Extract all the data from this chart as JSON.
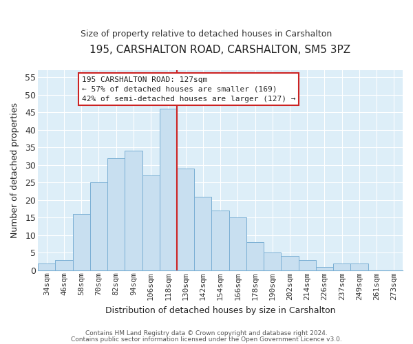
{
  "title": "195, CARSHALTON ROAD, CARSHALTON, SM5 3PZ",
  "subtitle": "Size of property relative to detached houses in Carshalton",
  "xlabel": "Distribution of detached houses by size in Carshalton",
  "ylabel": "Number of detached properties",
  "bin_labels": [
    "34sqm",
    "46sqm",
    "58sqm",
    "70sqm",
    "82sqm",
    "94sqm",
    "106sqm",
    "118sqm",
    "130sqm",
    "142sqm",
    "154sqm",
    "166sqm",
    "178sqm",
    "190sqm",
    "202sqm",
    "214sqm",
    "226sqm",
    "237sqm",
    "249sqm",
    "261sqm",
    "273sqm"
  ],
  "bar_heights": [
    2,
    3,
    16,
    25,
    32,
    34,
    27,
    46,
    29,
    21,
    17,
    15,
    8,
    5,
    4,
    3,
    1,
    2,
    2,
    0,
    0
  ],
  "bar_color": "#c8dff0",
  "bar_edgecolor": "#7aafd4",
  "vline_color": "#cc2222",
  "vline_x": 7.5,
  "ylim": [
    0,
    57
  ],
  "yticks": [
    0,
    5,
    10,
    15,
    20,
    25,
    30,
    35,
    40,
    45,
    50,
    55
  ],
  "annotation_title": "195 CARSHALTON ROAD: 127sqm",
  "annotation_line1": "← 57% of detached houses are smaller (169)",
  "annotation_line2": "42% of semi-detached houses are larger (127) →",
  "annotation_box_facecolor": "#ffffff",
  "annotation_box_edgecolor": "#cc2222",
  "footer1": "Contains HM Land Registry data © Crown copyright and database right 2024.",
  "footer2": "Contains public sector information licensed under the Open Government Licence v3.0.",
  "fig_facecolor": "#ffffff",
  "plot_facecolor": "#ddeef8",
  "grid_color": "#ffffff",
  "spine_color": "#7aafd4",
  "title_fontsize": 11,
  "subtitle_fontsize": 9,
  "xlabel_fontsize": 9,
  "ylabel_fontsize": 9,
  "tick_fontsize": 8,
  "annot_fontsize": 8,
  "footer_fontsize": 6.5
}
